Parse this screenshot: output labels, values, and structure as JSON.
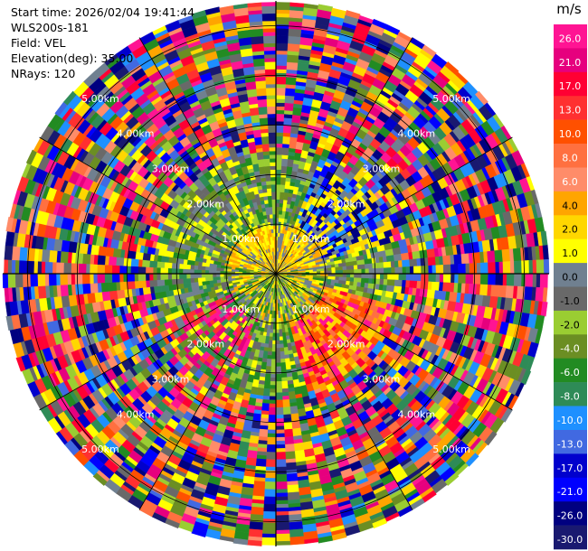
{
  "chart_data": {
    "type": "heatmap",
    "projection": "polar-ppi",
    "info": {
      "start_time": "Start time: 2026/02/04 19:41:44",
      "site": "WLS200s-181",
      "field": "Field: VEL",
      "elevation": "Elevation(deg): 35.00",
      "nrays": "NRays: 120"
    },
    "range_rings_km": [
      1.0,
      2.0,
      3.0,
      4.0,
      5.0
    ],
    "ring_labels": [
      "1.00km",
      "2.00km",
      "3.00km",
      "4.00km",
      "5.00km"
    ],
    "max_range_km": 5.5,
    "azimuth_lines_deg": [
      0,
      30,
      60,
      90,
      120,
      150,
      180,
      210,
      240,
      270,
      300,
      330
    ],
    "colorbar": {
      "unit": "m/s",
      "tick_labels": [
        "26.0",
        "21.0",
        "17.0",
        "13.0",
        "10.0",
        "8.0",
        "6.0",
        "4.0",
        "2.0",
        "1.0",
        "0.0",
        "-1.0",
        "-2.0",
        "-4.0",
        "-6.0",
        "-8.0",
        "-10.0",
        "-13.0",
        "-17.0",
        "-21.0",
        "-26.0",
        "-30.0"
      ],
      "colors": [
        "#ff1493",
        "#e6007e",
        "#ff0033",
        "#ff3030",
        "#ff5000",
        "#ff7040",
        "#ff8c69",
        "#ffa500",
        "#ffd700",
        "#ffff00",
        "#708090",
        "#696969",
        "#9acd32",
        "#6b8e23",
        "#228b22",
        "#2e8b57",
        "#1e90ff",
        "#4169e1",
        "#0000cd",
        "#0000ff",
        "#000080",
        "#191970"
      ]
    },
    "structure": {
      "center_region_km": [
        0,
        1.0
      ],
      "center_colors": [
        "#ffff00",
        "#ffd700",
        "#ffa500",
        "#708090"
      ],
      "mid_region_km": [
        1.0,
        2.5
      ],
      "noise_region_km": [
        2.5,
        5.5
      ]
    }
  }
}
